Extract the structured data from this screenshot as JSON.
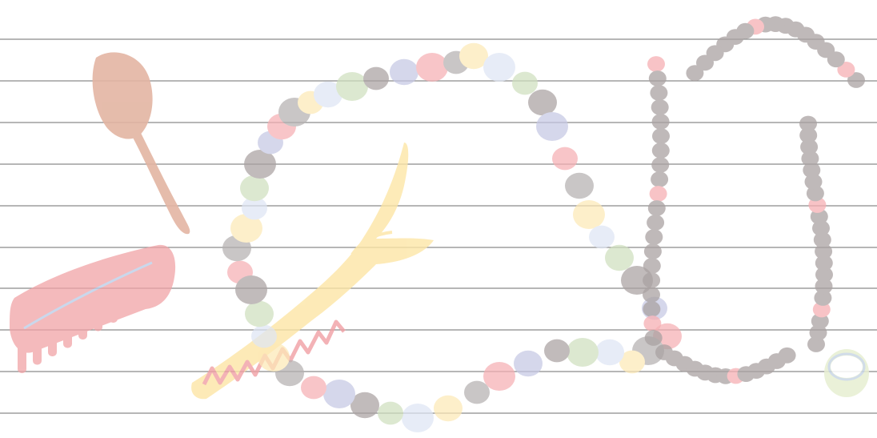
{
  "background": {
    "paper_color": "#ffffff",
    "rule_color": "#8a8a8a"
  },
  "illustration": {
    "style": "faded watercolor",
    "objects": [
      "spoon-icon",
      "comb-icon",
      "fish-bone-icon",
      "bead-necklace-icon",
      "dark-bead-necklace-icon",
      "bangle-icon"
    ],
    "colors": {
      "spoon": "#e3b5a3",
      "comb": "#f1a3a6",
      "comb_line": "#b9cbe6",
      "fish_bone": "#fde6a6",
      "fish_bone_zigzag": "#f1a0a4",
      "dark_bead": "#aaa2a2",
      "pink_bead": "#f6b0b4",
      "gray_bead": "#b5b1b1",
      "green_bead": "#cfe0bf",
      "blue_bead": "#dfe6f4",
      "yellow_bead": "#fde9b6",
      "purple_bead": "#c6c8e4",
      "bangle": "#e7efd2",
      "bangle_rim": "#c9d7e6"
    }
  }
}
